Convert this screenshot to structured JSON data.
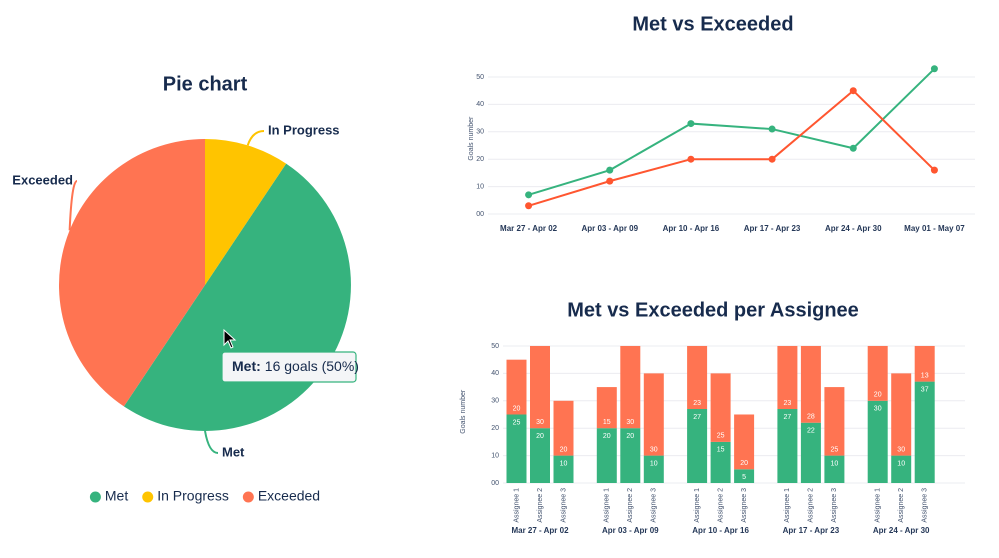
{
  "chart_data": [
    {
      "type": "pie",
      "title": "Pie chart",
      "categories": [
        "Met",
        "In Progress",
        "Exceeded"
      ],
      "values": [
        16,
        3,
        13
      ],
      "colors": [
        "#36b37e",
        "#ffc400",
        "#ff7452"
      ],
      "legend": "bottom",
      "tooltip": {
        "label": "Met:",
        "text": "16 goals (50%)"
      }
    },
    {
      "type": "line",
      "title": "Met vs Exceeded",
      "y_label": "Goals number",
      "categories": [
        "Mar 27 - Apr 02",
        "Apr 03 - Apr 09",
        "Apr 10 - Apr 16",
        "Apr 17 - Apr 23",
        "Apr 24 - Apr 30",
        "May 01 - May 07"
      ],
      "series": [
        {
          "color": "#36b37e",
          "values": [
            7,
            16,
            33,
            31,
            24,
            53
          ]
        },
        {
          "color": "#ff5630",
          "values": [
            3,
            12,
            20,
            20,
            45,
            16
          ]
        }
      ],
      "ylim": [
        0,
        55
      ],
      "yticks": [
        {
          "value": 0,
          "label": "00"
        },
        10,
        20,
        30,
        40,
        50
      ],
      "grid": true
    },
    {
      "type": "stacked_bar",
      "title": "Met vs Exceeded per Assignee",
      "y_label": "Goals number",
      "groups": [
        "Mar 27 - Apr 02",
        "Apr 03 - Apr 09",
        "Apr 10 - Apr 16",
        "Apr 17 - Apr 23",
        "Apr 24 - Apr 30"
      ],
      "categories": [
        "Assignee 1",
        "Assignee 2",
        "Assignee 3",
        "Assignee 1",
        "Assignee 2",
        "Assignee 3",
        "Assignee 1",
        "Assignee 2",
        "Assignee 3",
        "Assignee 1",
        "Assignee 2",
        "Assignee 3",
        "Assignee 1",
        "Assignee 2",
        "Assignee 3"
      ],
      "series": [
        {
          "color": "#36b37e",
          "values": [
            25,
            20,
            10,
            20,
            20,
            10,
            27,
            15,
            5,
            27,
            22,
            10,
            30,
            10,
            37
          ]
        },
        {
          "color": "#ff7452",
          "values": [
            20,
            30,
            20,
            15,
            30,
            30,
            23,
            25,
            20,
            23,
            28,
            25,
            20,
            30,
            13
          ]
        }
      ],
      "ylim": [
        0,
        52
      ],
      "yticks": [
        {
          "value": 0,
          "label": "00"
        },
        10,
        20,
        30,
        40,
        50
      ],
      "grid": true
    }
  ]
}
